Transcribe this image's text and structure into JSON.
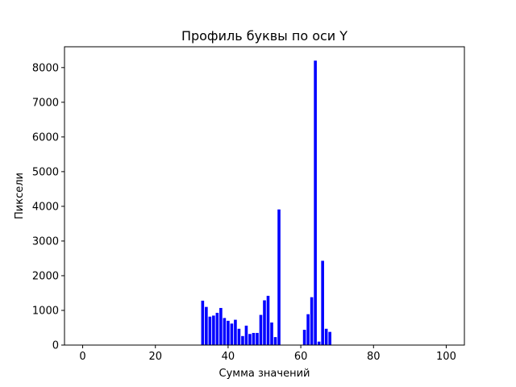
{
  "chart_data": {
    "type": "bar",
    "title": "Профиль буквы по оси Y",
    "xlabel": "Сумма значений",
    "ylabel": "Пиксели",
    "xlim": [
      -5,
      105
    ],
    "ylim": [
      0,
      8600
    ],
    "x_ticks": [
      0,
      20,
      40,
      60,
      80,
      100
    ],
    "y_ticks": [
      0,
      1000,
      2000,
      3000,
      4000,
      5000,
      6000,
      7000,
      8000
    ],
    "bar_color": "#0000ff",
    "grid": false,
    "x": [
      33,
      34,
      35,
      36,
      37,
      38,
      39,
      40,
      41,
      42,
      43,
      44,
      45,
      46,
      47,
      48,
      49,
      50,
      51,
      52,
      53,
      54,
      61,
      62,
      63,
      64,
      65,
      66,
      67,
      68
    ],
    "values": [
      1280,
      1100,
      820,
      850,
      930,
      1070,
      780,
      700,
      620,
      730,
      470,
      260,
      560,
      320,
      350,
      350,
      870,
      1290,
      1420,
      650,
      230,
      3910,
      440,
      890,
      1380,
      8200,
      100,
      2430,
      470,
      380
    ]
  }
}
